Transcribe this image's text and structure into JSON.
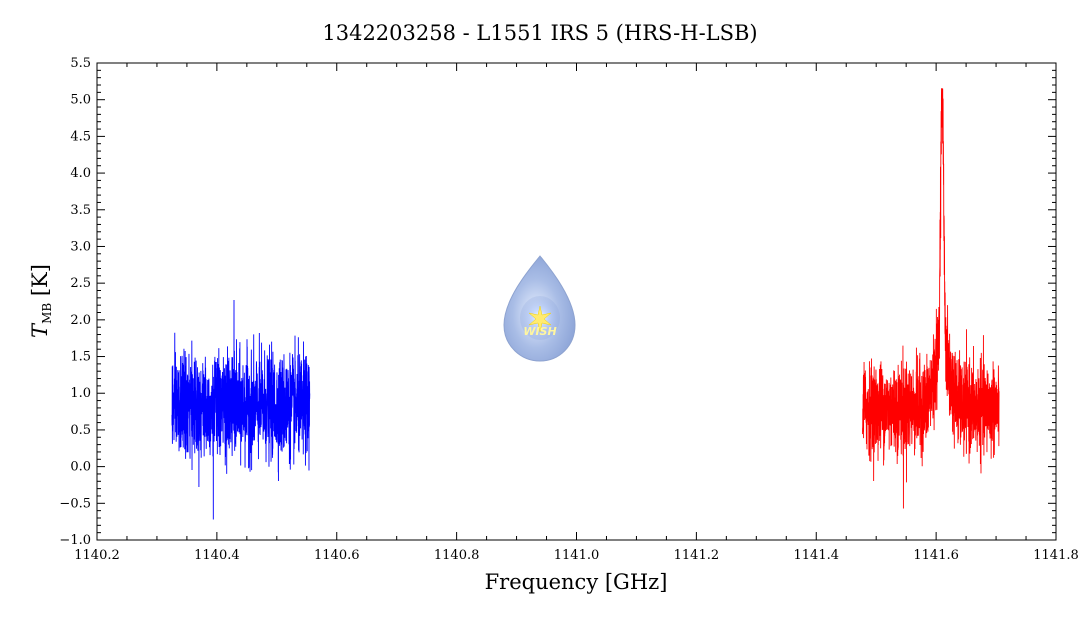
{
  "chart_data": {
    "type": "line",
    "title": "1342203258 - L1551 IRS 5 (HRS-H-LSB)",
    "xlabel": "Frequency [GHz]",
    "ylabel_main": "T",
    "ylabel_sub": "MB",
    "ylabel_unit": " [K]",
    "xlim": [
      1140.2,
      1141.8
    ],
    "ylim": [
      -1.0,
      5.5
    ],
    "xticks": [
      1140.2,
      1140.4,
      1140.6,
      1140.8,
      1141.0,
      1141.2,
      1141.4,
      1141.6,
      1141.8
    ],
    "xtick_labels": [
      "1140.2",
      "1140.4",
      "1140.6",
      "1140.8",
      "1141.0",
      "1141.2",
      "1141.4",
      "1141.6",
      "1141.8"
    ],
    "yticks": [
      -1.0,
      -0.5,
      0.0,
      0.5,
      1.0,
      1.5,
      2.0,
      2.5,
      3.0,
      3.5,
      4.0,
      4.5,
      5.0,
      5.5
    ],
    "ytick_labels": [
      "−1.0",
      "−0.5",
      "0.0",
      "0.5",
      "1.0",
      "1.5",
      "2.0",
      "2.5",
      "3.0",
      "3.5",
      "4.0",
      "4.5",
      "5.0",
      "5.5"
    ],
    "grid": false,
    "series": [
      {
        "color": "#0000ff",
        "x_range": [
          1140.325,
          1140.555
        ],
        "baseline": 0.82,
        "noise_sigma": 0.45,
        "envelope_max": 2.27,
        "envelope_min": -0.72
      },
      {
        "color": "#ff0000",
        "x_range": [
          1141.477,
          1141.705
        ],
        "baseline": 0.8,
        "noise_sigma": 0.4,
        "envelope_max": 5.15,
        "envelope_min": -0.57,
        "peak_x": 1141.61,
        "peak_y": 5.15,
        "shoulder_y": 2.2
      }
    ]
  },
  "logo": {
    "text": "WISH",
    "icon": "water-drop-icon"
  }
}
